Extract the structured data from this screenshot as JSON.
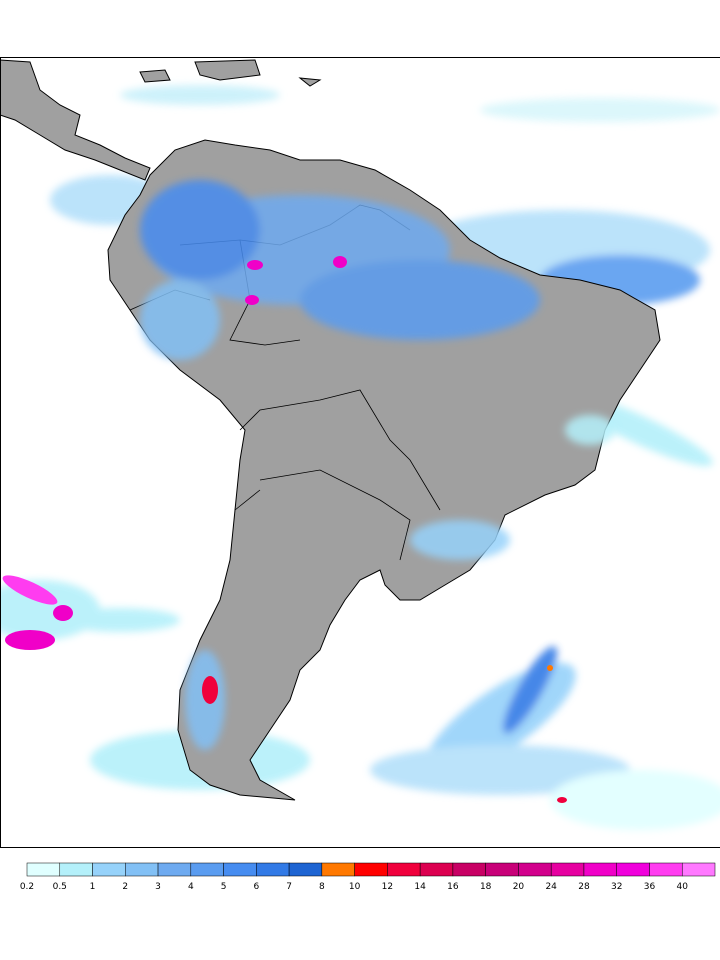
{
  "colorbar": {
    "labels": [
      0.2,
      0.5,
      1,
      2,
      3,
      4,
      5,
      6,
      7,
      8,
      10,
      12,
      14,
      16,
      18,
      20,
      24,
      28,
      32,
      36,
      40
    ],
    "colors": [
      "#e0ffff",
      "#b4f0fa",
      "#96d2fa",
      "#82c0f5",
      "#6eaaf0",
      "#5a9cf0",
      "#468cf0",
      "#327ae6",
      "#1e64d2",
      "#ff7800",
      "#ff0000",
      "#f0003c",
      "#dc0050",
      "#c80064",
      "#c80078",
      "#d2008c",
      "#e600a0",
      "#f000c8",
      "#f000dc",
      "#ff3cf0",
      "#ff78ff"
    ]
  }
}
